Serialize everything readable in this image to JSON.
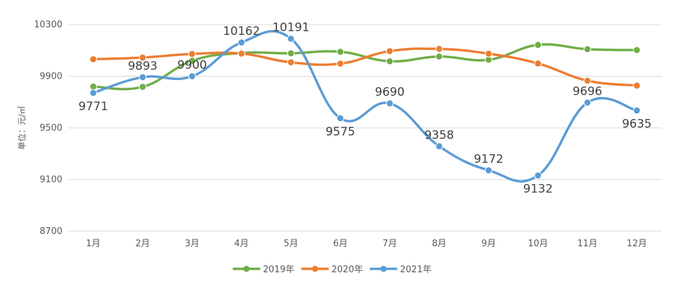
{
  "chart_data": {
    "type": "line",
    "title": "",
    "xlabel": "",
    "ylabel": "单位：元/㎡",
    "categories": [
      "1月",
      "2月",
      "3月",
      "4月",
      "5月",
      "6月",
      "7月",
      "8月",
      "9月",
      "10月",
      "11月",
      "12月"
    ],
    "ylim": [
      8700,
      10300
    ],
    "yticks": [
      8700,
      9100,
      9500,
      9900,
      10300
    ],
    "grid": true,
    "legend": "bottom",
    "series": [
      {
        "name": "2019年",
        "color": "#70ad47",
        "values": [
          9820,
          9818,
          10020,
          10080,
          10078,
          10090,
          10016,
          10053,
          10028,
          10143,
          10110,
          10103
        ],
        "labels": null
      },
      {
        "name": "2020年",
        "color": "#ed7d31",
        "values": [
          10032,
          10045,
          10073,
          10076,
          10008,
          9998,
          10095,
          10112,
          10075,
          9999,
          9866,
          9828
        ],
        "labels": null
      },
      {
        "name": "2021年",
        "color": "#5b9bd5",
        "values": [
          9771,
          9893,
          9900,
          10162,
          10191,
          9575,
          9690,
          9358,
          9172,
          9132,
          9696,
          9635
        ],
        "labels": [
          "9771",
          "9893",
          "9900",
          "10162",
          "10191",
          "9575",
          "9690",
          "9358",
          "9172",
          "9132",
          "9696",
          "9635"
        ]
      }
    ]
  }
}
